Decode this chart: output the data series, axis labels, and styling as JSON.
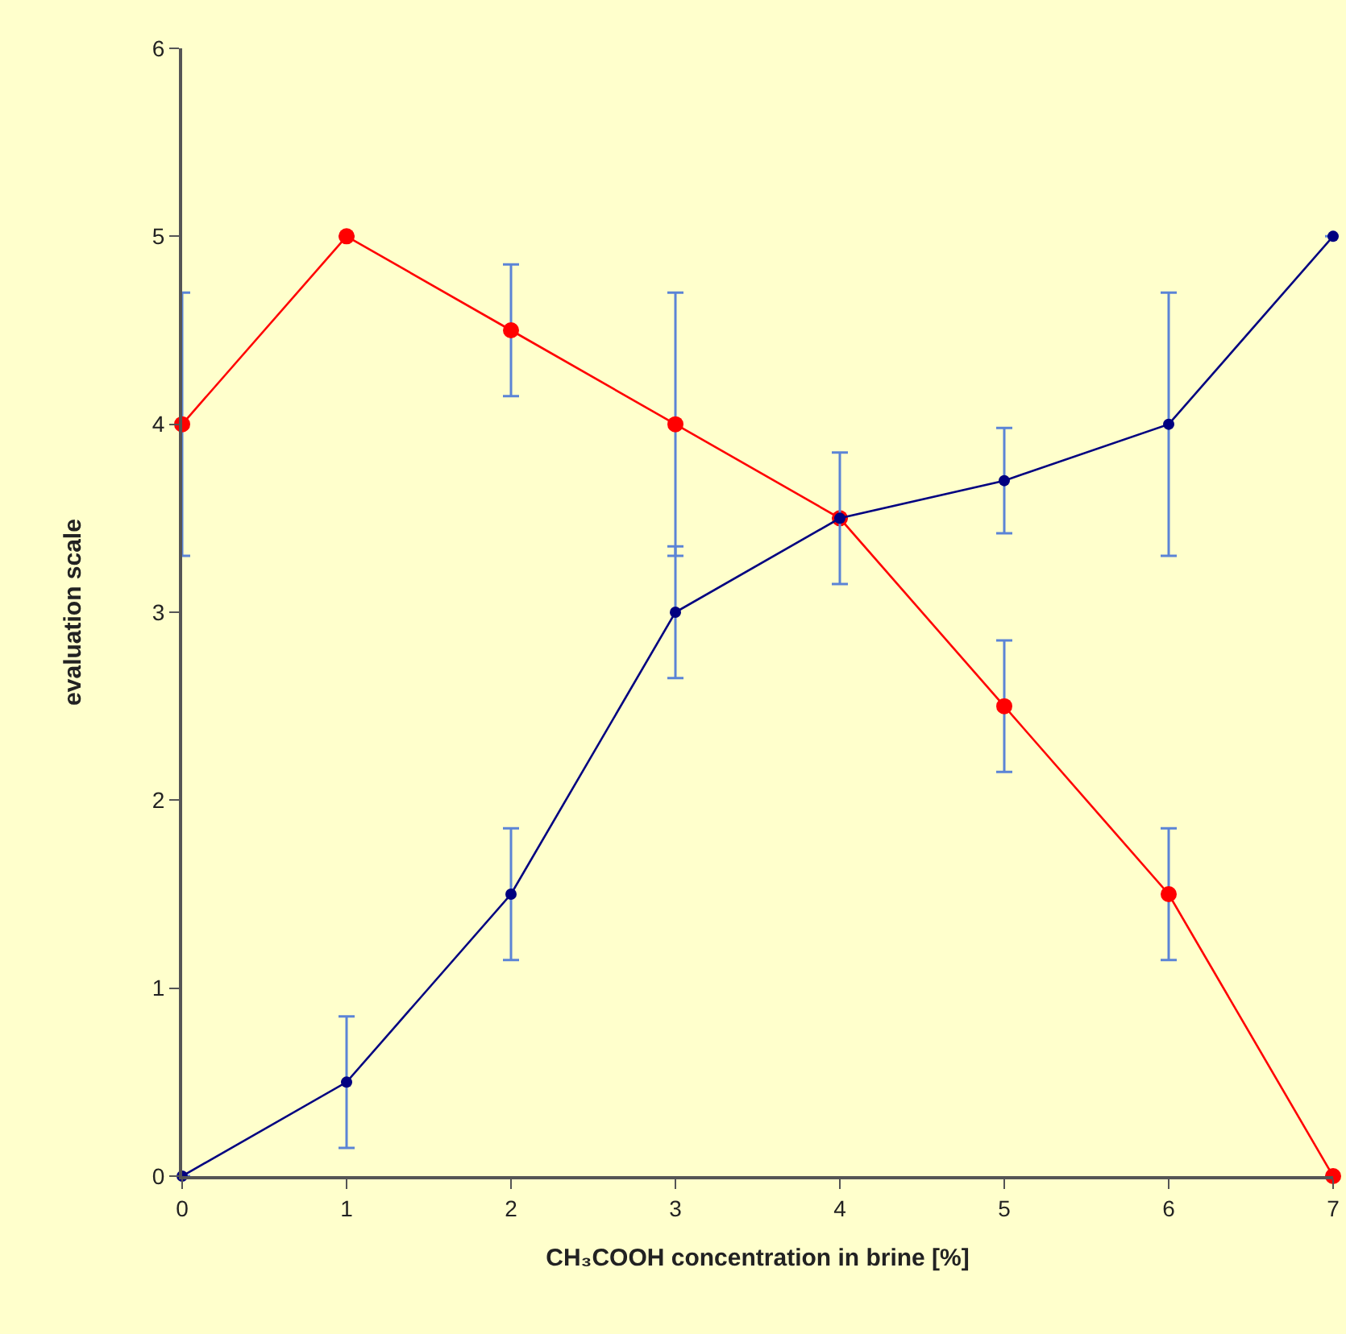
{
  "chart_data": {
    "type": "line",
    "xlabel": "CH₃COOH concentration in brine [%]",
    "ylabel": "evaluation scale",
    "x": [
      0,
      1,
      2,
      3,
      4,
      5,
      6,
      7
    ],
    "series": [
      {
        "color": "#ff0000",
        "values": [
          4,
          5,
          4.5,
          4,
          3.5,
          2.5,
          1.5,
          0
        ],
        "errors": [
          0.7,
          null,
          0.35,
          0.7,
          null,
          0.35,
          0.35,
          null
        ]
      },
      {
        "color": "#000080",
        "values": [
          0,
          0.5,
          1.5,
          3,
          3.5,
          3.7,
          4,
          5
        ],
        "errors": [
          null,
          0.35,
          0.35,
          0.35,
          0.35,
          0.28,
          0.7,
          null
        ]
      }
    ],
    "xlim": [
      0,
      7
    ],
    "xticks": [
      0,
      1,
      2,
      3,
      4,
      5,
      6,
      7
    ],
    "ylim": [
      0,
      6
    ],
    "yticks": [
      0,
      1,
      2,
      3,
      4,
      5,
      6
    ],
    "grid": false,
    "marker": "circle",
    "line_style": "solid"
  }
}
